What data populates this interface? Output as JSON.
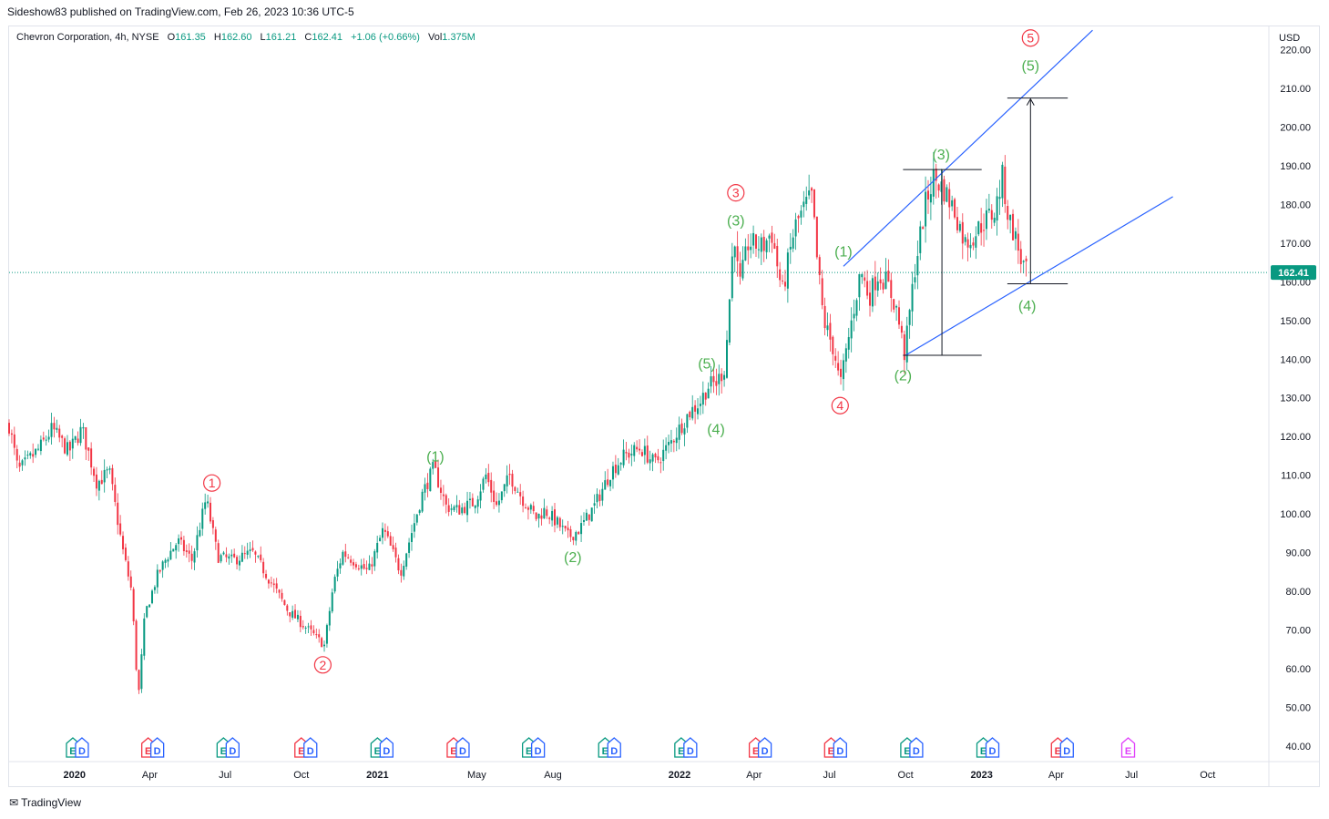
{
  "header": {
    "published_line": "Sideshow83 published on TradingView.com, Feb 26, 2023 10:36 UTC-5"
  },
  "legend": {
    "symbol": "Chevron Corporation, 4h, NYSE",
    "open_label": "O",
    "open": "161.35",
    "high_label": "H",
    "high": "162.60",
    "low_label": "L",
    "low": "161.21",
    "close_label": "C",
    "close": "162.41",
    "change": "+1.06 (+0.66%)",
    "vol_label": "Vol",
    "volume": "1.375M"
  },
  "footer": {
    "brand": "TradingView",
    "logo_icon": "tradingview-logo-icon"
  },
  "colors": {
    "up": "#089981",
    "down": "#f23645",
    "trendline": "#2962ff",
    "green_label": "#4caf50",
    "red_label": "#f23645",
    "price_line": "#089981"
  },
  "chart_data": {
    "type": "candlestick",
    "currency_label": "USD",
    "last_price": 162.41,
    "last_price_label": "162.41",
    "ylim": [
      36,
      226
    ],
    "y_ticks": [
      "220.00",
      "210.00",
      "200.00",
      "190.00",
      "180.00",
      "170.00",
      "160.00",
      "150.00",
      "140.00",
      "130.00",
      "120.00",
      "110.00",
      "100.00",
      "90.00",
      "80.00",
      "70.00",
      "60.00",
      "50.00",
      "40.00"
    ],
    "xlim": [
      "2019-10-14",
      "2023-12-14"
    ],
    "x_ticks": [
      {
        "date": "2020-01-01",
        "label": "2020",
        "bold": true
      },
      {
        "date": "2020-04-01",
        "label": "Apr"
      },
      {
        "date": "2020-07-01",
        "label": "Jul"
      },
      {
        "date": "2020-10-01",
        "label": "Oct"
      },
      {
        "date": "2021-01-01",
        "label": "2021",
        "bold": true
      },
      {
        "date": "2021-05-01",
        "label": "May"
      },
      {
        "date": "2021-08-01",
        "label": "Aug"
      },
      {
        "date": "2022-01-01",
        "label": "2022",
        "bold": true
      },
      {
        "date": "2022-04-01",
        "label": "Apr"
      },
      {
        "date": "2022-07-01",
        "label": "Jul"
      },
      {
        "date": "2022-10-01",
        "label": "Oct"
      },
      {
        "date": "2023-01-01",
        "label": "2023",
        "bold": true
      },
      {
        "date": "2023-04-01",
        "label": "Apr"
      },
      {
        "date": "2023-07-01",
        "label": "Jul"
      },
      {
        "date": "2023-10-01",
        "label": "Oct"
      }
    ],
    "price_path": [
      [
        "2019-10-14",
        123
      ],
      [
        "2019-10-25",
        111
      ],
      [
        "2019-11-20",
        117
      ],
      [
        "2019-12-05",
        122
      ],
      [
        "2019-12-25",
        116
      ],
      [
        "2020-01-10",
        122
      ],
      [
        "2020-01-28",
        108
      ],
      [
        "2020-02-12",
        111
      ],
      [
        "2020-02-28",
        91
      ],
      [
        "2020-03-10",
        80
      ],
      [
        "2020-03-18",
        52
      ],
      [
        "2020-03-26",
        74
      ],
      [
        "2020-04-10",
        84
      ],
      [
        "2020-04-22",
        89
      ],
      [
        "2020-05-05",
        93
      ],
      [
        "2020-05-22",
        88
      ],
      [
        "2020-06-08",
        104
      ],
      [
        "2020-06-22",
        89
      ],
      [
        "2020-07-10",
        88
      ],
      [
        "2020-08-03",
        90
      ],
      [
        "2020-08-18",
        85
      ],
      [
        "2020-09-15",
        75
      ],
      [
        "2020-10-05",
        71
      ],
      [
        "2020-10-29",
        66
      ],
      [
        "2020-11-09",
        82
      ],
      [
        "2020-11-20",
        90
      ],
      [
        "2020-12-03",
        88
      ],
      [
        "2020-12-21",
        85
      ],
      [
        "2021-01-08",
        96
      ],
      [
        "2021-01-29",
        85
      ],
      [
        "2021-02-24",
        105
      ],
      [
        "2021-03-10",
        112
      ],
      [
        "2021-03-25",
        102
      ],
      [
        "2021-04-08",
        101
      ],
      [
        "2021-04-28",
        103
      ],
      [
        "2021-05-12",
        110
      ],
      [
        "2021-05-25",
        102
      ],
      [
        "2021-06-10",
        110
      ],
      [
        "2021-06-25",
        104
      ],
      [
        "2021-07-12",
        99
      ],
      [
        "2021-07-22",
        101
      ],
      [
        "2021-08-05",
        98
      ],
      [
        "2021-08-20",
        94
      ],
      [
        "2021-09-02",
        96
      ],
      [
        "2021-09-20",
        102
      ],
      [
        "2021-10-10",
        111
      ],
      [
        "2021-10-26",
        115
      ],
      [
        "2021-11-15",
        117
      ],
      [
        "2021-12-02",
        113
      ],
      [
        "2021-12-20",
        118
      ],
      [
        "2022-01-12",
        126
      ],
      [
        "2022-01-26",
        129
      ],
      [
        "2022-02-04",
        133
      ],
      [
        "2022-02-15",
        134
      ],
      [
        "2022-02-25",
        138
      ],
      [
        "2022-03-08",
        174
      ],
      [
        "2022-03-14",
        158
      ],
      [
        "2022-03-25",
        170
      ],
      [
        "2022-04-12",
        169
      ],
      [
        "2022-04-22",
        173
      ],
      [
        "2022-05-05",
        157
      ],
      [
        "2022-05-20",
        174
      ],
      [
        "2022-06-03",
        180
      ],
      [
        "2022-06-10",
        182
      ],
      [
        "2022-06-16",
        166
      ],
      [
        "2022-06-24",
        150
      ],
      [
        "2022-07-07",
        142
      ],
      [
        "2022-07-14",
        133
      ],
      [
        "2022-07-28",
        150
      ],
      [
        "2022-08-08",
        163
      ],
      [
        "2022-08-18",
        156
      ],
      [
        "2022-08-28",
        162
      ],
      [
        "2022-09-08",
        160
      ],
      [
        "2022-09-20",
        153
      ],
      [
        "2022-09-30",
        141
      ],
      [
        "2022-10-12",
        163
      ],
      [
        "2022-10-25",
        180
      ],
      [
        "2022-11-04",
        187
      ],
      [
        "2022-11-16",
        184
      ],
      [
        "2022-11-30",
        178
      ],
      [
        "2022-12-12",
        170
      ],
      [
        "2022-12-22",
        172
      ],
      [
        "2023-01-05",
        176
      ],
      [
        "2023-01-17",
        178
      ],
      [
        "2023-01-26",
        187
      ],
      [
        "2023-02-02",
        177
      ],
      [
        "2023-02-10",
        172
      ],
      [
        "2023-02-17",
        166
      ],
      [
        "2023-02-24",
        162.4
      ]
    ],
    "trendlines": [
      {
        "from": [
          "2022-07-18",
          164
        ],
        "to": [
          "2023-05-15",
          225
        ],
        "style": "solid"
      },
      {
        "from": [
          "2022-10-01",
          141
        ],
        "to": [
          "2023-08-20",
          182
        ],
        "style": "solid"
      }
    ],
    "measure": {
      "date_left": "2022-09-28",
      "date_right": "2023-01-01",
      "level_high": 189,
      "level_low": 141,
      "x_vertical": "2022-11-14",
      "proj_date_left": "2023-02-01",
      "proj_date_right": "2023-04-15",
      "proj_low": 159.5,
      "proj_high": 207.5,
      "proj_x": "2023-03-01"
    },
    "wave_labels": [
      {
        "text": "1",
        "circled": true,
        "color": "red",
        "date": "2020-06-15",
        "price": 108
      },
      {
        "text": "2",
        "circled": true,
        "color": "red",
        "date": "2020-10-27",
        "price": 61
      },
      {
        "text": "3",
        "circled": true,
        "color": "red",
        "date": "2022-03-10",
        "price": 183
      },
      {
        "text": "4",
        "circled": true,
        "color": "red",
        "date": "2022-07-14",
        "price": 128
      },
      {
        "text": "5",
        "circled": true,
        "color": "red",
        "date": "2023-03-01",
        "price": 223
      },
      {
        "text": "(1)",
        "circled": false,
        "color": "green",
        "date": "2021-03-12",
        "price": 115
      },
      {
        "text": "(2)",
        "circled": false,
        "color": "green",
        "date": "2021-08-25",
        "price": 89
      },
      {
        "text": "(3)",
        "circled": false,
        "color": "green",
        "date": "2022-03-10",
        "price": 176
      },
      {
        "text": "(4)",
        "circled": false,
        "color": "green",
        "date": "2022-02-14",
        "price": 122
      },
      {
        "text": "(5)",
        "circled": false,
        "color": "green",
        "date": "2022-02-03",
        "price": 139
      },
      {
        "text": "(1)",
        "circled": false,
        "color": "green",
        "date": "2022-07-18",
        "price": 168
      },
      {
        "text": "(2)",
        "circled": false,
        "color": "green",
        "date": "2022-09-28",
        "price": 136
      },
      {
        "text": "(3)",
        "circled": false,
        "color": "green",
        "date": "2022-11-13",
        "price": 193
      },
      {
        "text": "(4)",
        "circled": false,
        "color": "green",
        "date": "2023-02-25",
        "price": 154
      },
      {
        "text": "(5)",
        "circled": false,
        "color": "green",
        "date": "2023-03-01",
        "price": 216
      }
    ],
    "event_markers": [
      {
        "date": "2020-01-10",
        "kinds": [
          "E",
          "D"
        ],
        "earn_color": "green"
      },
      {
        "date": "2020-04-10",
        "kinds": [
          "E",
          "D"
        ],
        "earn_color": "red"
      },
      {
        "date": "2020-07-10",
        "kinds": [
          "E",
          "D"
        ],
        "earn_color": "green"
      },
      {
        "date": "2020-10-12",
        "kinds": [
          "E",
          "D"
        ],
        "earn_color": "red"
      },
      {
        "date": "2021-01-12",
        "kinds": [
          "E",
          "D"
        ],
        "earn_color": "green"
      },
      {
        "date": "2021-04-14",
        "kinds": [
          "E",
          "D"
        ],
        "earn_color": "red"
      },
      {
        "date": "2021-07-14",
        "kinds": [
          "E",
          "D"
        ],
        "earn_color": "green"
      },
      {
        "date": "2021-10-14",
        "kinds": [
          "E",
          "D"
        ],
        "earn_color": "green"
      },
      {
        "date": "2022-01-14",
        "kinds": [
          "E",
          "D"
        ],
        "earn_color": "green"
      },
      {
        "date": "2022-04-14",
        "kinds": [
          "E",
          "D"
        ],
        "earn_color": "red"
      },
      {
        "date": "2022-07-14",
        "kinds": [
          "E",
          "D"
        ],
        "earn_color": "red"
      },
      {
        "date": "2022-10-14",
        "kinds": [
          "E",
          "D"
        ],
        "earn_color": "green"
      },
      {
        "date": "2023-01-14",
        "kinds": [
          "E",
          "D"
        ],
        "earn_color": "green"
      },
      {
        "date": "2023-04-14",
        "kinds": [
          "E",
          "D"
        ],
        "earn_color": "red"
      },
      {
        "date": "2023-07-08",
        "kinds": [
          "E"
        ],
        "earn_color": "magenta"
      }
    ]
  }
}
